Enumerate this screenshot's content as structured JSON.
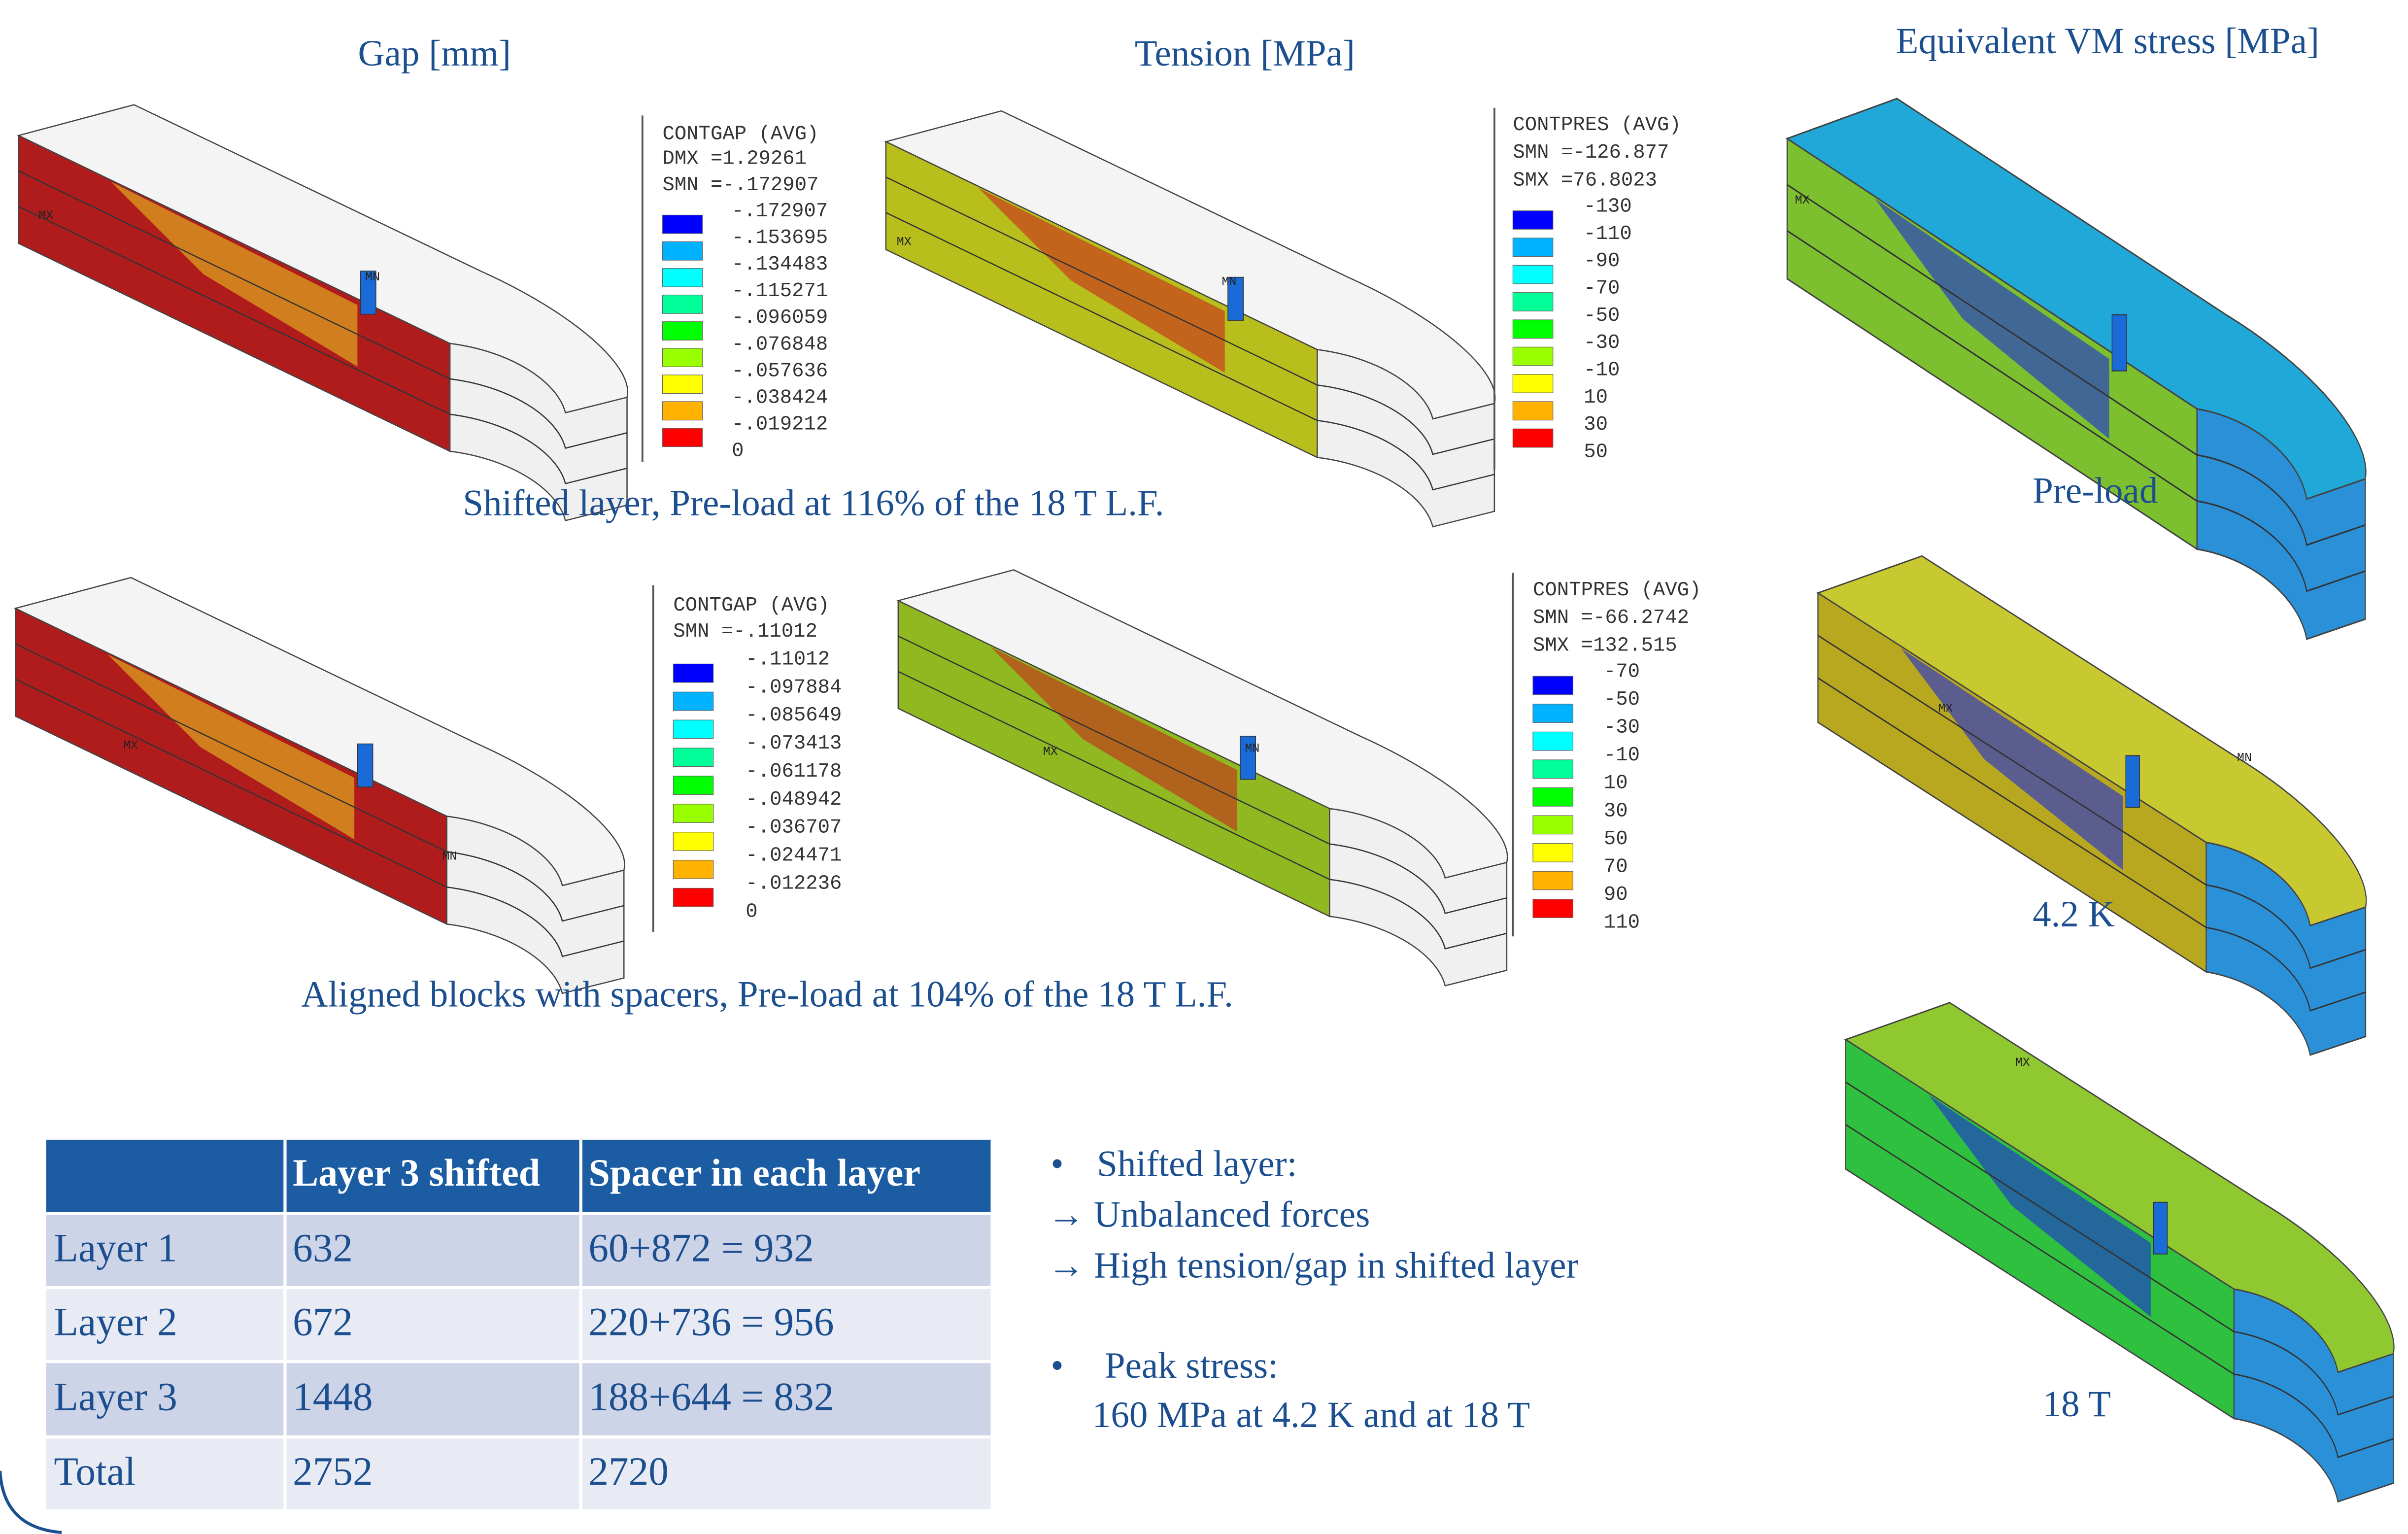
{
  "headings": {
    "gap": "Gap [mm]",
    "tension": "Tension [MPa]",
    "vm": "Equivalent VM stress [MPa]"
  },
  "captions": {
    "shifted": "Shifted layer, Pre-load at 116% of the 18 T L.F.",
    "aligned": "Aligned blocks with spacers, Pre-load at 104% of the 18 T L.F."
  },
  "vm_labels": [
    "Pre-load",
    "4.2 K",
    "18 T"
  ],
  "legends": [
    {
      "header": [
        "CONTGAP  (AVG)",
        "DMX =1.29261",
        "SMN =-.172907"
      ],
      "levels": [
        "-.172907",
        "-.153695",
        "-.134483",
        "-.115271",
        "-.096059",
        "-.076848",
        "-.057636",
        "-.038424",
        "-.019212",
        "0"
      ]
    },
    {
      "header": [
        "CONTPRES (AVG)",
        "SMN =-126.877",
        "SMX =76.8023"
      ],
      "levels": [
        "-130",
        "-110",
        "-90",
        "-70",
        "-50",
        "-30",
        "-10",
        "10",
        "30",
        "50"
      ]
    },
    {
      "header": [
        "CONTGAP  (AVG)",
        "SMN =-.11012"
      ],
      "levels": [
        "-.11012",
        "-.097884",
        "-.085649",
        "-.073413",
        "-.061178",
        "-.048942",
        "-.036707",
        "-.024471",
        "-.012236",
        "0"
      ]
    },
    {
      "header": [
        "CONTPRES (AVG)",
        "SMN =-66.2742",
        "SMX =132.515"
      ],
      "levels": [
        "-70",
        "-50",
        "-30",
        "-10",
        "10",
        "30",
        "50",
        "70",
        "90",
        "110"
      ]
    }
  ],
  "model_tags": [
    [
      "MX",
      "MN"
    ],
    [
      "MX",
      "MN"
    ],
    [
      "MX",
      "MN"
    ],
    [
      "MX",
      "MN"
    ],
    [
      "MX"
    ],
    [
      "MX",
      "MN"
    ],
    [
      "MX"
    ]
  ],
  "table": {
    "header": [
      "Layer 3 shifted",
      "Spacer in each layer"
    ],
    "rows": [
      [
        "Layer 1",
        "632",
        "60+872 = 932"
      ],
      [
        "Layer 2",
        "672",
        "220+736 = 956"
      ],
      [
        "Layer 3",
        "1448",
        "188+644 = 832"
      ],
      [
        "Total",
        "2752",
        "2720"
      ]
    ]
  },
  "bullets": {
    "shifted": "Shifted layer:",
    "shifted_points": [
      "→ Unbalanced forces",
      "→ High tension/gap in shifted layer"
    ],
    "peak": "Peak stress:",
    "peak_detail": "160 MPa at 4.2 K and at 18 T"
  }
}
